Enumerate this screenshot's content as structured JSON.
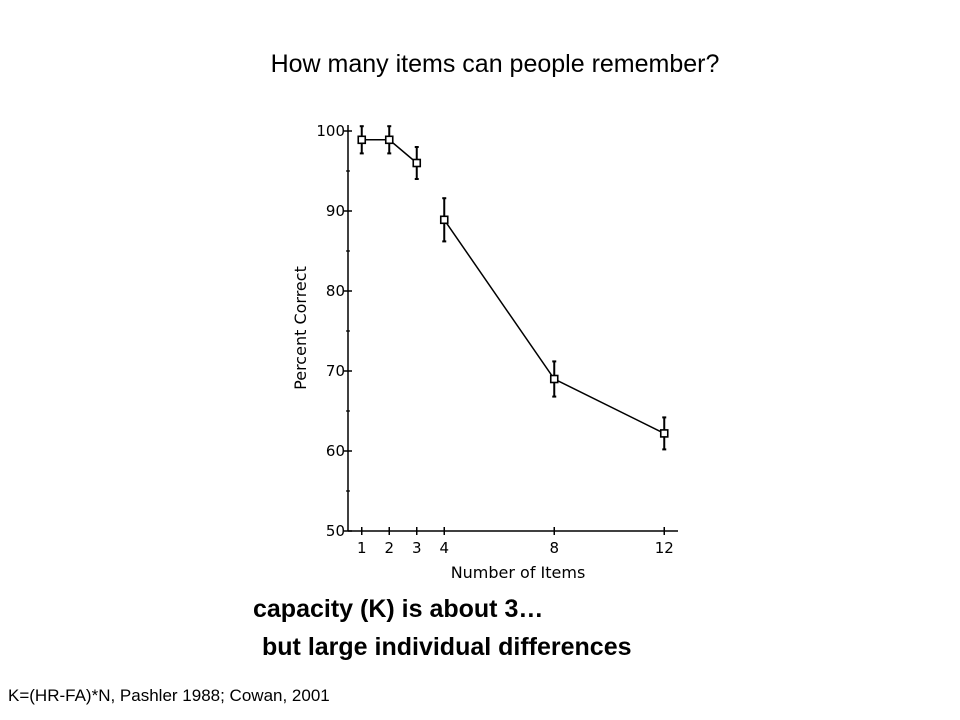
{
  "slide": {
    "title": "How many items can people remember?",
    "caption_line1": "capacity (K) is about 3…",
    "caption_line2": "but large individual differences",
    "reference": "K=(HR-FA)*N, Pashler 1988; Cowan, 2001"
  },
  "chart_data": {
    "type": "line",
    "title": "",
    "xlabel": "Number of Items",
    "ylabel": "Percent Correct",
    "xlim": [
      0.5,
      12.5
    ],
    "ylim": [
      50,
      100
    ],
    "xticks": [
      1,
      2,
      3,
      4,
      8,
      12
    ],
    "yticks": [
      50,
      60,
      70,
      80,
      90,
      100
    ],
    "grid": false,
    "series": [
      {
        "x": [
          1,
          2,
          3,
          4,
          8,
          12
        ],
        "y": [
          98.9,
          98.9,
          96.0,
          88.9,
          69.0,
          62.2
        ],
        "err": [
          1.7,
          1.7,
          2.0,
          2.7,
          2.2,
          2.0
        ]
      }
    ],
    "line_breaks_after_index": [
      2
    ],
    "marker": "open-square",
    "color": "#000000"
  }
}
